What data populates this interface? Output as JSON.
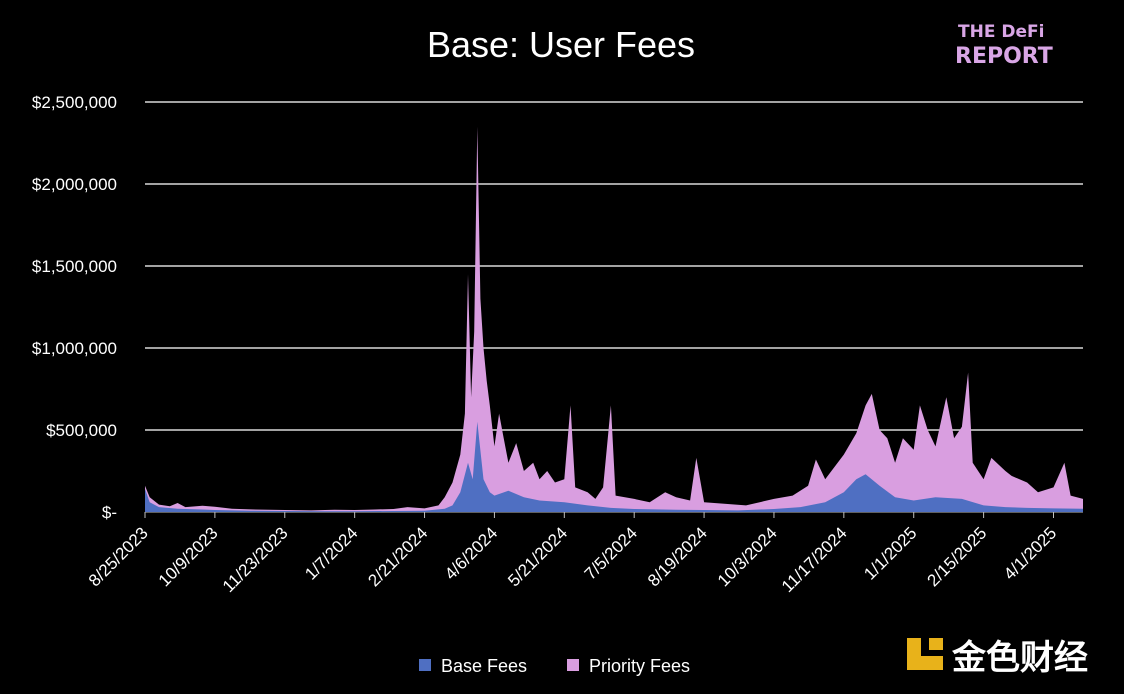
{
  "colors": {
    "background": "#000000",
    "grid": "#d9d9d9",
    "base_fees": "#4f6fc2",
    "priority_fees": "#d99ee0",
    "logo": "#d9a6e6",
    "watermark_icon": "#e8b21a"
  },
  "logo": {
    "line1": "THE DeFi",
    "line2": "REPORT"
  },
  "watermark": {
    "text": "金色财经"
  },
  "chart_data": {
    "type": "area",
    "stacked": true,
    "title": "Base: User Fees",
    "xlabel": "",
    "ylabel": "",
    "ylim": [
      0,
      2500000
    ],
    "grid": true,
    "legend_position": "bottom-center",
    "x_range": [
      "8/25/2023",
      "4/20/2025"
    ],
    "x_ticks": [
      "8/25/2023",
      "10/9/2023",
      "11/23/2023",
      "1/7/2024",
      "2/21/2024",
      "4/6/2024",
      "5/21/2024",
      "7/5/2024",
      "8/19/2024",
      "10/3/2024",
      "11/17/2024",
      "1/1/2025",
      "2/15/2025",
      "4/1/2025"
    ],
    "y_ticks": [
      {
        "value": 0,
        "label": "$-"
      },
      {
        "value": 500000,
        "label": "$500,000"
      },
      {
        "value": 1000000,
        "label": "$1,000,000"
      },
      {
        "value": 1500000,
        "label": "$1,500,000"
      },
      {
        "value": 2000000,
        "label": "$2,000,000"
      },
      {
        "value": 2500000,
        "label": "$2,500,000"
      }
    ],
    "series": [
      {
        "name": "Base Fees",
        "points": [
          [
            "8/25/2023",
            140000
          ],
          [
            "8/28/2023",
            60000
          ],
          [
            "9/3/2023",
            30000
          ],
          [
            "9/15/2023",
            20000
          ],
          [
            "10/1/2023",
            15000
          ],
          [
            "10/9/2023",
            12000
          ],
          [
            "11/1/2023",
            8000
          ],
          [
            "11/23/2023",
            6000
          ],
          [
            "12/15/2023",
            5000
          ],
          [
            "1/7/2024",
            5000
          ],
          [
            "2/1/2024",
            6000
          ],
          [
            "2/21/2024",
            8000
          ],
          [
            "3/5/2024",
            20000
          ],
          [
            "3/10/2024",
            40000
          ],
          [
            "3/15/2024",
            120000
          ],
          [
            "3/20/2024",
            300000
          ],
          [
            "3/23/2024",
            200000
          ],
          [
            "3/26/2024",
            550000
          ],
          [
            "3/30/2024",
            200000
          ],
          [
            "4/3/2024",
            120000
          ],
          [
            "4/6/2024",
            100000
          ],
          [
            "4/15/2024",
            130000
          ],
          [
            "4/25/2024",
            90000
          ],
          [
            "5/5/2024",
            70000
          ],
          [
            "5/21/2024",
            60000
          ],
          [
            "6/5/2024",
            40000
          ],
          [
            "6/20/2024",
            25000
          ],
          [
            "7/5/2024",
            18000
          ],
          [
            "8/1/2024",
            14000
          ],
          [
            "8/19/2024",
            12000
          ],
          [
            "9/10/2024",
            10000
          ],
          [
            "10/3/2024",
            18000
          ],
          [
            "10/20/2024",
            30000
          ],
          [
            "11/5/2024",
            60000
          ],
          [
            "11/17/2024",
            120000
          ],
          [
            "11/25/2024",
            200000
          ],
          [
            "12/1/2024",
            230000
          ],
          [
            "12/10/2024",
            160000
          ],
          [
            "12/20/2024",
            90000
          ],
          [
            "1/1/2025",
            70000
          ],
          [
            "1/15/2025",
            90000
          ],
          [
            "2/1/2025",
            80000
          ],
          [
            "2/15/2025",
            40000
          ],
          [
            "3/1/2025",
            30000
          ],
          [
            "3/15/2025",
            25000
          ],
          [
            "4/1/2025",
            22000
          ],
          [
            "4/20/2025",
            20000
          ]
        ]
      },
      {
        "name": "Priority Fees",
        "points": [
          [
            "8/25/2023",
            160000
          ],
          [
            "8/28/2023",
            90000
          ],
          [
            "9/3/2023",
            45000
          ],
          [
            "9/10/2023",
            35000
          ],
          [
            "9/15/2023",
            55000
          ],
          [
            "9/20/2023",
            30000
          ],
          [
            "10/1/2023",
            38000
          ],
          [
            "10/9/2023",
            32000
          ],
          [
            "10/20/2023",
            20000
          ],
          [
            "11/1/2023",
            16000
          ],
          [
            "11/23/2023",
            12000
          ],
          [
            "12/10/2023",
            10000
          ],
          [
            "12/25/2023",
            14000
          ],
          [
            "1/7/2024",
            12000
          ],
          [
            "1/20/2024",
            15000
          ],
          [
            "2/1/2024",
            18000
          ],
          [
            "2/10/2024",
            30000
          ],
          [
            "2/21/2024",
            22000
          ],
          [
            "3/1/2024",
            40000
          ],
          [
            "3/5/2024",
            90000
          ],
          [
            "3/10/2024",
            180000
          ],
          [
            "3/15/2024",
            350000
          ],
          [
            "3/18/2024",
            600000
          ],
          [
            "3/20/2024",
            1450000
          ],
          [
            "3/22/2024",
            700000
          ],
          [
            "3/24/2024",
            1100000
          ],
          [
            "3/26/2024",
            2350000
          ],
          [
            "3/28/2024",
            1300000
          ],
          [
            "3/30/2024",
            1000000
          ],
          [
            "4/1/2024",
            800000
          ],
          [
            "4/3/2024",
            650000
          ],
          [
            "4/6/2024",
            400000
          ],
          [
            "4/9/2024",
            600000
          ],
          [
            "4/12/2024",
            450000
          ],
          [
            "4/15/2024",
            300000
          ],
          [
            "4/20/2024",
            420000
          ],
          [
            "4/25/2024",
            250000
          ],
          [
            "5/1/2024",
            300000
          ],
          [
            "5/5/2024",
            200000
          ],
          [
            "5/10/2024",
            250000
          ],
          [
            "5/15/2024",
            180000
          ],
          [
            "5/21/2024",
            200000
          ],
          [
            "5/25/2024",
            650000
          ],
          [
            "5/28/2024",
            150000
          ],
          [
            "6/5/2024",
            120000
          ],
          [
            "6/10/2024",
            80000
          ],
          [
            "6/15/2024",
            150000
          ],
          [
            "6/20/2024",
            650000
          ],
          [
            "6/23/2024",
            100000
          ],
          [
            "7/5/2024",
            80000
          ],
          [
            "7/15/2024",
            60000
          ],
          [
            "7/25/2024",
            120000
          ],
          [
            "8/1/2024",
            90000
          ],
          [
            "8/10/2024",
            70000
          ],
          [
            "8/14/2024",
            330000
          ],
          [
            "8/19/2024",
            60000
          ],
          [
            "9/1/2024",
            50000
          ],
          [
            "9/15/2024",
            40000
          ],
          [
            "10/3/2024",
            80000
          ],
          [
            "10/15/2024",
            100000
          ],
          [
            "10/25/2024",
            160000
          ],
          [
            "10/30/2024",
            320000
          ],
          [
            "11/5/2024",
            200000
          ],
          [
            "11/17/2024",
            350000
          ],
          [
            "11/25/2024",
            480000
          ],
          [
            "12/1/2024",
            650000
          ],
          [
            "12/5/2024",
            720000
          ],
          [
            "12/10/2024",
            500000
          ],
          [
            "12/15/2024",
            450000
          ],
          [
            "12/20/2024",
            300000
          ],
          [
            "12/25/2024",
            450000
          ],
          [
            "1/1/2025",
            380000
          ],
          [
            "1/5/2025",
            650000
          ],
          [
            "1/10/2025",
            500000
          ],
          [
            "1/15/2025",
            400000
          ],
          [
            "1/22/2025",
            700000
          ],
          [
            "1/27/2025",
            450000
          ],
          [
            "2/1/2025",
            520000
          ],
          [
            "2/5/2025",
            850000
          ],
          [
            "2/8/2025",
            300000
          ],
          [
            "2/15/2025",
            200000
          ],
          [
            "2/20/2025",
            330000
          ],
          [
            "3/1/2025",
            250000
          ],
          [
            "3/5/2025",
            220000
          ],
          [
            "3/15/2025",
            180000
          ],
          [
            "3/22/2025",
            120000
          ],
          [
            "4/1/2025",
            150000
          ],
          [
            "4/8/2025",
            300000
          ],
          [
            "4/12/2025",
            100000
          ],
          [
            "4/20/2025",
            80000
          ]
        ]
      }
    ]
  }
}
